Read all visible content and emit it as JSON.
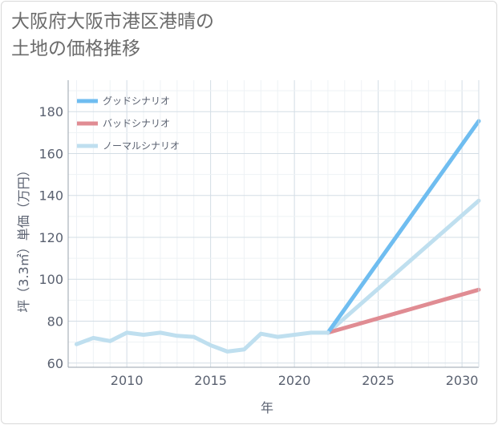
{
  "chart_data": {
    "type": "line",
    "title": "大阪府大阪市港区港晴の\n土地の価格推移",
    "xlabel": "年",
    "ylabel": "坪（3.3㎡）単価（万円）",
    "xlim": [
      2006.5,
      2031
    ],
    "ylim": [
      58,
      195
    ],
    "x_ticks": [
      2010,
      2015,
      2020,
      2025,
      2030
    ],
    "y_ticks": [
      60,
      80,
      100,
      120,
      140,
      160,
      180
    ],
    "grid": true,
    "legend_position": "top-left",
    "historical": {
      "x": [
        2007,
        2008,
        2009,
        2010,
        2011,
        2012,
        2013,
        2014,
        2015,
        2016,
        2017,
        2018,
        2019,
        2020,
        2021,
        2022
      ],
      "y": [
        69,
        72,
        70.5,
        74.5,
        73.5,
        74.5,
        73,
        72.5,
        68.5,
        65.5,
        66.5,
        74,
        72.5,
        73.5,
        74.5,
        74.5
      ]
    },
    "series": [
      {
        "name": "グッドシナリオ",
        "color": "#6fbdf0",
        "x": [
          2022,
          2031
        ],
        "y": [
          74.5,
          175.5
        ]
      },
      {
        "name": "バッドシナリオ",
        "color": "#e08c93",
        "x": [
          2022,
          2031
        ],
        "y": [
          74.5,
          95
        ]
      },
      {
        "name": "ノーマルシナリオ",
        "color": "#bfdfef",
        "x": [
          2022,
          2031
        ],
        "y": [
          74.5,
          137.5
        ]
      }
    ],
    "historical_color": "#bfdfef"
  }
}
